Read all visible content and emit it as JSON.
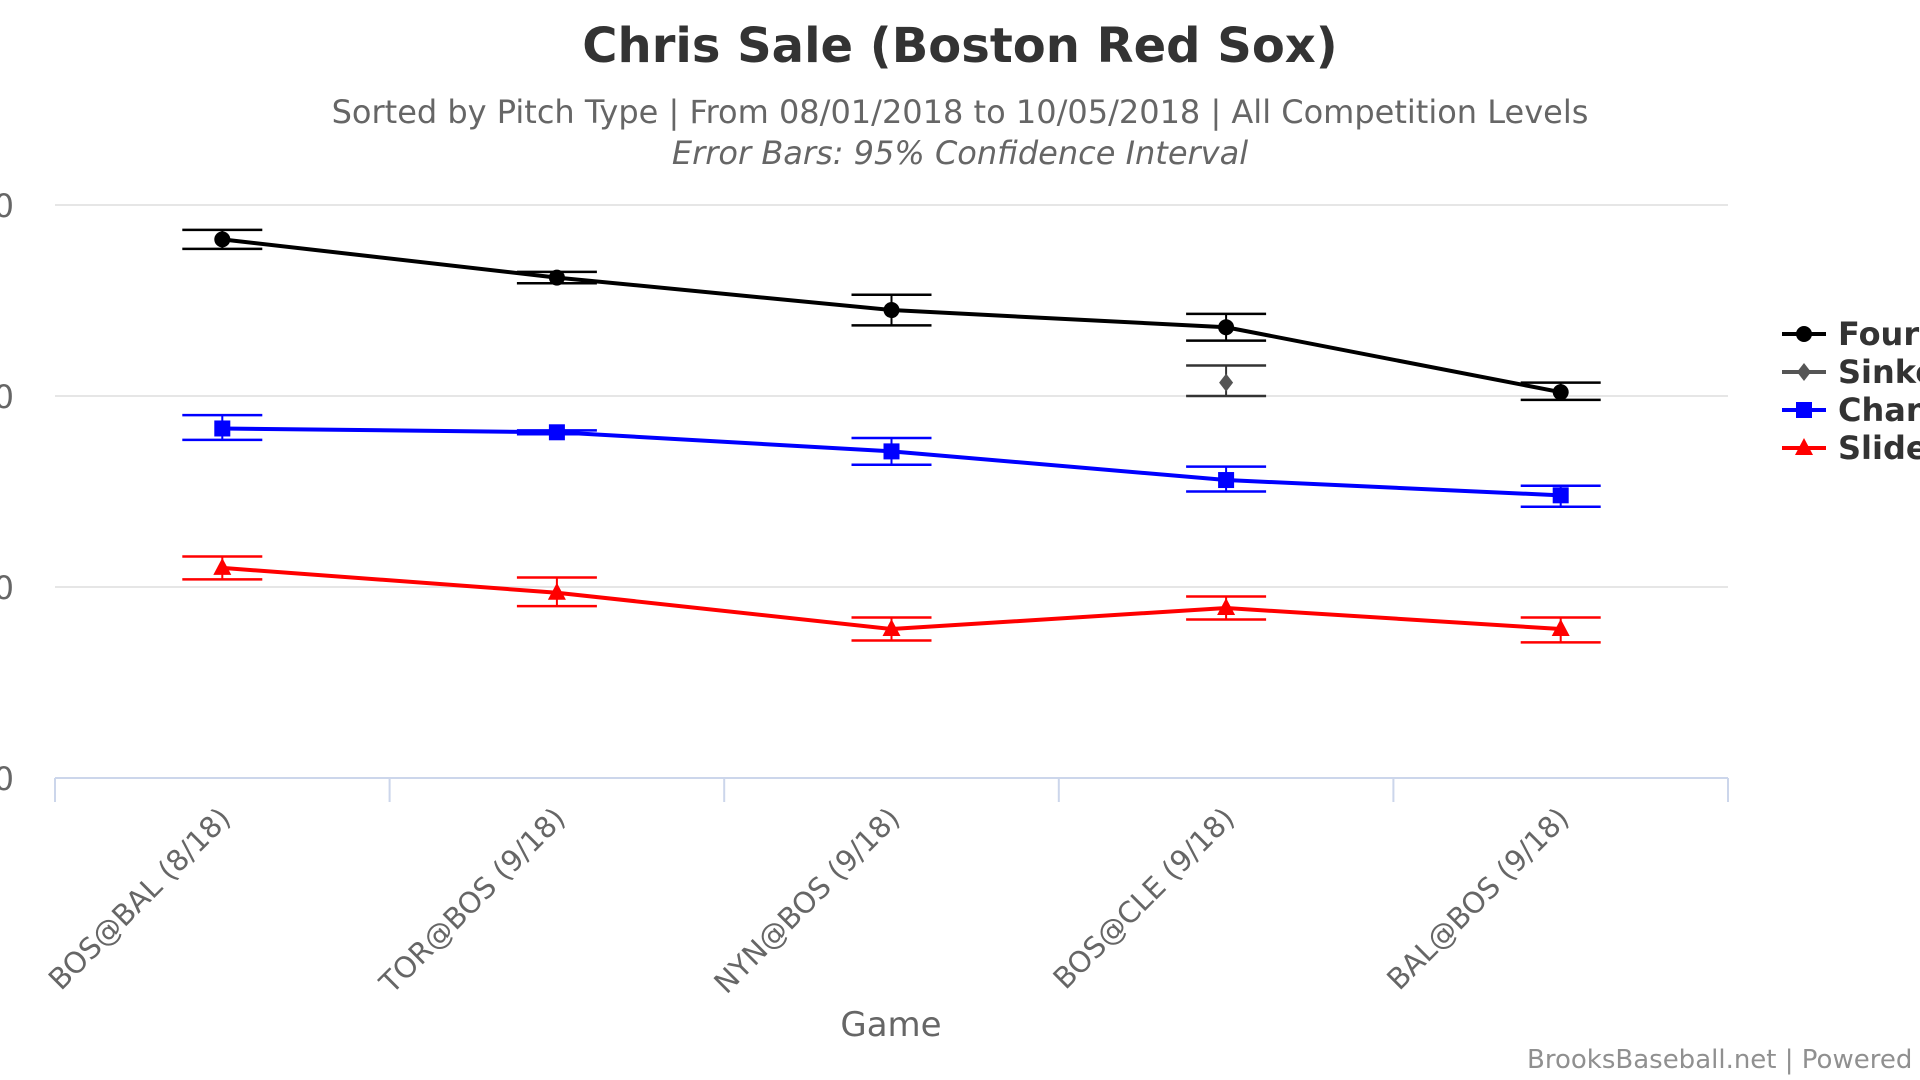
{
  "chart_data": {
    "type": "line",
    "title": "Chris Sale (Boston Red Sox)",
    "subtitle": "Sorted by Pitch Type | From 08/01/2018 to 10/05/2018 | All Competition Levels",
    "subtitle2": "Error Bars: 95% Confidence Interval",
    "xlabel": "Game",
    "ylabel": "",
    "categories": [
      "BOS@BAL (8/18)",
      "TOR@BOS (9/18)",
      "NYN@BOS (9/18)",
      "BOS@CLE (9/18)",
      "BAL@BOS (9/18)"
    ],
    "y_ticks": [
      "0",
      "0",
      "0",
      "0"
    ],
    "ylim": [
      0,
      3
    ],
    "grid": true,
    "legend_position": "right",
    "series": [
      {
        "name": "Fours",
        "color": "#000000",
        "marker": "circle",
        "values": [
          2.82,
          2.62,
          2.45,
          2.36,
          2.02
        ],
        "err_low": [
          2.77,
          2.59,
          2.37,
          2.29,
          1.98
        ],
        "err_high": [
          2.87,
          2.65,
          2.53,
          2.43,
          2.07
        ]
      },
      {
        "name": "Sinke",
        "color": "#555555",
        "marker": "diamond",
        "points": [
          {
            "category_index": 3,
            "value": 2.07,
            "err_low": 2.0,
            "err_high": 2.16
          }
        ]
      },
      {
        "name": "Chan",
        "color": "#0000ff",
        "marker": "square",
        "values": [
          1.83,
          1.81,
          1.71,
          1.56,
          1.48
        ],
        "err_low": [
          1.77,
          1.8,
          1.64,
          1.5,
          1.42
        ],
        "err_high": [
          1.9,
          1.82,
          1.78,
          1.63,
          1.53
        ]
      },
      {
        "name": "Slide",
        "color": "#ff0000",
        "marker": "triangle",
        "values": [
          1.1,
          0.97,
          0.78,
          0.89,
          0.78
        ],
        "err_low": [
          1.04,
          0.9,
          0.72,
          0.83,
          0.71
        ],
        "err_high": [
          1.16,
          1.05,
          0.84,
          0.95,
          0.84
        ]
      }
    ]
  },
  "credits": "BrooksBaseball.net | Powered by I"
}
